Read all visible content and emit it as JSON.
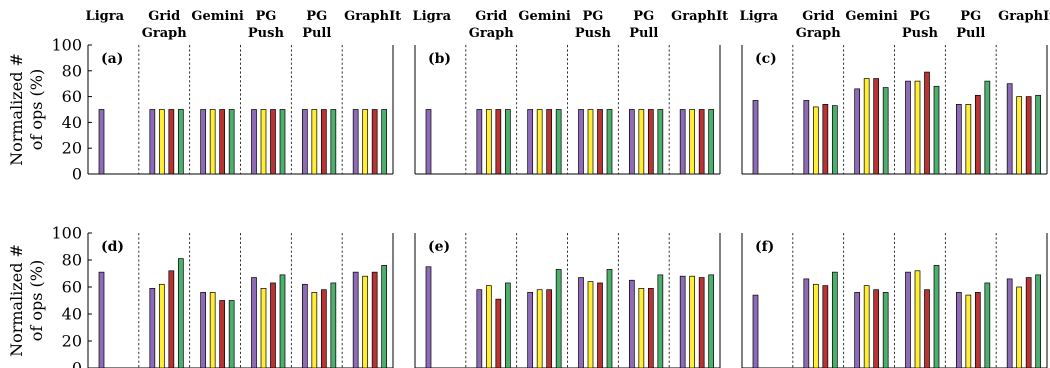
{
  "figure": {
    "ylabel_lines": [
      "Normalized #",
      "of ops (%)"
    ]
  },
  "colors": {
    "series": [
      "#8e6bb7",
      "#ffee33",
      "#b83333",
      "#4caf6e"
    ],
    "axis": "#000000",
    "divider": "#000000"
  },
  "chart_data": [
    {
      "type": "bar",
      "panel_label": "(a)",
      "categories": [
        "Ligra",
        "Grid Graph",
        "Gemini",
        "PG Push",
        "PG Pull",
        "GraphIt"
      ],
      "category_label_lines": [
        [
          "Ligra"
        ],
        [
          "Grid",
          "Graph"
        ],
        [
          "Gemini"
        ],
        [
          "PG",
          "Push"
        ],
        [
          "PG",
          "Pull"
        ],
        [
          "GraphIt"
        ]
      ],
      "series": [
        {
          "values": [
            50,
            50,
            50,
            50,
            50,
            50
          ]
        },
        {
          "values": [
            0,
            50,
            50,
            50,
            50,
            50
          ]
        },
        {
          "values": [
            0,
            50,
            50,
            50,
            50,
            50
          ]
        },
        {
          "values": [
            0,
            50,
            50,
            50,
            50,
            50
          ]
        }
      ],
      "ylim": [
        0,
        100
      ],
      "yticks": [
        "0",
        "20",
        "40",
        "60",
        "80",
        "100"
      ],
      "grid": false,
      "group_dividers": "dashed"
    },
    {
      "type": "bar",
      "panel_label": "(b)",
      "categories": [
        "Ligra",
        "Grid Graph",
        "Gemini",
        "PG Push",
        "PG Pull",
        "GraphIt"
      ],
      "category_label_lines": [
        [
          "Ligra"
        ],
        [
          "Grid",
          "Graph"
        ],
        [
          "Gemini"
        ],
        [
          "PG",
          "Push"
        ],
        [
          "PG",
          "Pull"
        ],
        [
          "GraphIt"
        ]
      ],
      "series": [
        {
          "values": [
            50,
            50,
            50,
            50,
            50,
            50
          ]
        },
        {
          "values": [
            0,
            50,
            50,
            50,
            50,
            50
          ]
        },
        {
          "values": [
            0,
            50,
            50,
            50,
            50,
            50
          ]
        },
        {
          "values": [
            0,
            50,
            50,
            50,
            50,
            50
          ]
        }
      ],
      "ylim": [
        0,
        100
      ],
      "grid": false,
      "group_dividers": "dashed"
    },
    {
      "type": "bar",
      "panel_label": "(c)",
      "categories": [
        "Ligra",
        "Grid Graph",
        "Gemini",
        "PG Push",
        "PG Pull",
        "GraphIt"
      ],
      "category_label_lines": [
        [
          "Ligra"
        ],
        [
          "Grid",
          "Graph"
        ],
        [
          "Gemini"
        ],
        [
          "PG",
          "Push"
        ],
        [
          "PG",
          "Pull"
        ],
        [
          "GraphIt"
        ]
      ],
      "series": [
        {
          "values": [
            57,
            57,
            66,
            72,
            54,
            70
          ]
        },
        {
          "values": [
            0,
            52,
            74,
            72,
            54,
            60
          ]
        },
        {
          "values": [
            0,
            54,
            74,
            79,
            61,
            60
          ]
        },
        {
          "values": [
            0,
            53,
            67,
            68,
            72,
            61
          ]
        }
      ],
      "ylim": [
        0,
        100
      ],
      "grid": false,
      "group_dividers": "dashed"
    },
    {
      "type": "bar",
      "panel_label": "(d)",
      "categories": [
        "Ligra",
        "Grid Graph",
        "Gemini",
        "PG Push",
        "PG Pull",
        "GraphIt"
      ],
      "series": [
        {
          "values": [
            71,
            59,
            56,
            67,
            62,
            71
          ]
        },
        {
          "values": [
            0,
            62,
            56,
            59,
            56,
            68
          ]
        },
        {
          "values": [
            0,
            72,
            50,
            63,
            58,
            71
          ]
        },
        {
          "values": [
            0,
            81,
            50,
            69,
            63,
            76
          ]
        }
      ],
      "ylim": [
        0,
        100
      ],
      "yticks": [
        "0",
        "20",
        "40",
        "60",
        "80",
        "100"
      ],
      "grid": false,
      "group_dividers": "dashed"
    },
    {
      "type": "bar",
      "panel_label": "(e)",
      "categories": [
        "Ligra",
        "Grid Graph",
        "Gemini",
        "PG Push",
        "PG Pull",
        "GraphIt"
      ],
      "series": [
        {
          "values": [
            75,
            58,
            56,
            67,
            65,
            68
          ]
        },
        {
          "values": [
            0,
            61,
            58,
            64,
            59,
            68
          ]
        },
        {
          "values": [
            0,
            51,
            58,
            63,
            59,
            67
          ]
        },
        {
          "values": [
            0,
            63,
            73,
            73,
            69,
            69
          ]
        }
      ],
      "ylim": [
        0,
        100
      ],
      "grid": false,
      "group_dividers": "dashed"
    },
    {
      "type": "bar",
      "panel_label": "(f)",
      "categories": [
        "Ligra",
        "Grid Graph",
        "Gemini",
        "PG Push",
        "PG Pull",
        "GraphIt"
      ],
      "series": [
        {
          "values": [
            54,
            66,
            56,
            71,
            56,
            66
          ]
        },
        {
          "values": [
            0,
            62,
            61,
            72,
            54,
            60
          ]
        },
        {
          "values": [
            0,
            61,
            58,
            58,
            56,
            67
          ]
        },
        {
          "values": [
            0,
            71,
            56,
            76,
            63,
            69
          ]
        }
      ],
      "ylim": [
        0,
        100
      ],
      "grid": false,
      "group_dividers": "dashed"
    }
  ]
}
